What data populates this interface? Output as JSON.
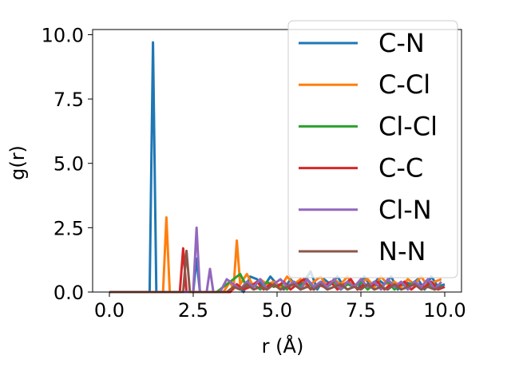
{
  "chart_data": {
    "type": "line",
    "title": "",
    "xlabel": "r (Å)",
    "ylabel": "g(r)",
    "xlim": [
      -0.5,
      10.5
    ],
    "ylim": [
      0,
      10.2
    ],
    "xticks": [
      0.0,
      2.5,
      5.0,
      7.5,
      10.0
    ],
    "xtick_labels": [
      "0.0",
      "2.5",
      "5.0",
      "7.5",
      "10.0"
    ],
    "yticks": [
      0.0,
      2.5,
      5.0,
      7.5,
      10.0
    ],
    "ytick_labels": [
      "0.0",
      "2.5",
      "5.0",
      "7.5",
      "10.0"
    ],
    "grid": false,
    "legend_position": "top-right",
    "series": [
      {
        "name": "C-N",
        "color": "#1f77b4",
        "points": [
          [
            0,
            0
          ],
          [
            1.2,
            0
          ],
          [
            1.3,
            9.7
          ],
          [
            1.4,
            0
          ],
          [
            2.5,
            0
          ],
          [
            2.6,
            1.3
          ],
          [
            2.7,
            0
          ],
          [
            3.6,
            0
          ],
          [
            3.8,
            0.3
          ],
          [
            4.0,
            0
          ],
          [
            4.2,
            0.6
          ],
          [
            4.4,
            0.5
          ],
          [
            4.6,
            0.2
          ],
          [
            4.8,
            0.6
          ],
          [
            5.0,
            0.3
          ],
          [
            5.2,
            0.1
          ],
          [
            5.4,
            0.5
          ],
          [
            5.6,
            0.2
          ],
          [
            5.8,
            0.4
          ],
          [
            6.0,
            0.8
          ],
          [
            6.2,
            0.1
          ],
          [
            6.4,
            0.5
          ],
          [
            6.6,
            0.3
          ],
          [
            6.8,
            0.6
          ],
          [
            7.0,
            0.2
          ],
          [
            7.2,
            0.4
          ],
          [
            7.4,
            0.1
          ],
          [
            7.6,
            0.6
          ],
          [
            7.8,
            0.2
          ],
          [
            8.0,
            0.5
          ],
          [
            8.2,
            0.3
          ],
          [
            8.4,
            0.6
          ],
          [
            8.6,
            0.1
          ],
          [
            8.8,
            0.4
          ],
          [
            9.0,
            0.3
          ],
          [
            9.2,
            0.5
          ],
          [
            9.4,
            0.1
          ],
          [
            9.6,
            0.6
          ],
          [
            9.8,
            0.2
          ],
          [
            10.0,
            0.3
          ]
        ]
      },
      {
        "name": "C-Cl",
        "color": "#ff7f0e",
        "points": [
          [
            0,
            0
          ],
          [
            1.6,
            0
          ],
          [
            1.7,
            2.9
          ],
          [
            1.8,
            0
          ],
          [
            3.4,
            0
          ],
          [
            3.6,
            0.4
          ],
          [
            3.7,
            0.1
          ],
          [
            3.8,
            2.0
          ],
          [
            3.9,
            0.3
          ],
          [
            4.1,
            0.7
          ],
          [
            4.3,
            0.2
          ],
          [
            4.5,
            0.5
          ],
          [
            4.7,
            0.3
          ],
          [
            4.9,
            0.4
          ],
          [
            5.1,
            0.2
          ],
          [
            5.3,
            0.6
          ],
          [
            5.5,
            0.3
          ],
          [
            5.7,
            0.5
          ],
          [
            5.9,
            0.2
          ],
          [
            6.1,
            0.4
          ],
          [
            6.3,
            0.6
          ],
          [
            6.5,
            0.2
          ],
          [
            6.7,
            0.5
          ],
          [
            6.9,
            0.3
          ],
          [
            7.1,
            0.6
          ],
          [
            7.3,
            0.2
          ],
          [
            7.5,
            0.4
          ],
          [
            7.7,
            0.5
          ],
          [
            7.9,
            0.2
          ],
          [
            8.1,
            0.6
          ],
          [
            8.3,
            0.3
          ],
          [
            8.5,
            0.4
          ],
          [
            8.7,
            0.2
          ],
          [
            8.9,
            0.5
          ],
          [
            9.1,
            0.3
          ],
          [
            9.3,
            0.6
          ],
          [
            9.5,
            0.2
          ],
          [
            9.7,
            0.4
          ],
          [
            9.9,
            0.5
          ]
        ]
      },
      {
        "name": "Cl-Cl",
        "color": "#2ca02c",
        "points": [
          [
            0,
            0
          ],
          [
            3.2,
            0
          ],
          [
            3.5,
            0.3
          ],
          [
            3.7,
            0.5
          ],
          [
            3.9,
            0.7
          ],
          [
            4.1,
            0.2
          ],
          [
            4.3,
            0.3
          ],
          [
            4.5,
            0.1
          ],
          [
            4.7,
            0.4
          ],
          [
            4.9,
            0.2
          ],
          [
            5.1,
            0.3
          ],
          [
            5.3,
            0.1
          ],
          [
            5.5,
            0.4
          ],
          [
            5.7,
            0.2
          ],
          [
            5.9,
            0.5
          ],
          [
            6.1,
            0.1
          ],
          [
            6.3,
            0.3
          ],
          [
            6.5,
            0.2
          ],
          [
            6.7,
            0.4
          ],
          [
            6.9,
            0.1
          ],
          [
            7.1,
            0.3
          ],
          [
            7.3,
            0.2
          ],
          [
            7.5,
            0.4
          ],
          [
            7.7,
            0.1
          ],
          [
            7.9,
            0.3
          ],
          [
            8.1,
            0.2
          ],
          [
            8.3,
            0.4
          ],
          [
            8.5,
            0.1
          ],
          [
            8.7,
            0.3
          ],
          [
            8.9,
            0.2
          ],
          [
            9.1,
            0.4
          ],
          [
            9.3,
            0.1
          ],
          [
            9.5,
            0.3
          ],
          [
            9.7,
            0.2
          ],
          [
            9.9,
            0.3
          ]
        ]
      },
      {
        "name": "C-C",
        "color": "#d62728",
        "points": [
          [
            0,
            0
          ],
          [
            2.1,
            0
          ],
          [
            2.2,
            1.7
          ],
          [
            2.3,
            0
          ],
          [
            3.6,
            0
          ],
          [
            3.8,
            0.3
          ],
          [
            4.0,
            0.1
          ],
          [
            4.2,
            0.2
          ],
          [
            4.4,
            0.4
          ],
          [
            4.6,
            0.1
          ],
          [
            4.8,
            0.3
          ],
          [
            5.0,
            0.2
          ],
          [
            5.2,
            0.4
          ],
          [
            5.4,
            0.1
          ],
          [
            5.6,
            0.3
          ],
          [
            5.8,
            0.5
          ],
          [
            6.0,
            0.1
          ],
          [
            6.2,
            0.3
          ],
          [
            6.4,
            0.2
          ],
          [
            6.6,
            0.4
          ],
          [
            6.8,
            0.1
          ],
          [
            7.0,
            0.3
          ],
          [
            7.2,
            0.5
          ],
          [
            7.4,
            0.1
          ],
          [
            7.6,
            0.3
          ],
          [
            7.8,
            0.2
          ],
          [
            8.0,
            0.4
          ],
          [
            8.2,
            0.1
          ],
          [
            8.4,
            0.3
          ],
          [
            8.6,
            0.2
          ],
          [
            8.8,
            0.4
          ],
          [
            9.0,
            0.1
          ],
          [
            9.2,
            0.3
          ],
          [
            9.4,
            0.2
          ],
          [
            9.6,
            0.4
          ],
          [
            9.8,
            0.1
          ],
          [
            10.0,
            0.2
          ]
        ]
      },
      {
        "name": "Cl-N",
        "color": "#9467bd",
        "points": [
          [
            0,
            0
          ],
          [
            2.5,
            0
          ],
          [
            2.6,
            2.5
          ],
          [
            2.7,
            0
          ],
          [
            2.9,
            0
          ],
          [
            3.0,
            0.9
          ],
          [
            3.1,
            0
          ],
          [
            3.3,
            0
          ],
          [
            3.5,
            0.5
          ],
          [
            3.7,
            0.3
          ],
          [
            3.9,
            0.1
          ],
          [
            4.1,
            0.4
          ],
          [
            4.3,
            0.2
          ],
          [
            4.5,
            0.5
          ],
          [
            4.7,
            0.1
          ],
          [
            4.9,
            0.3
          ],
          [
            5.1,
            0.5
          ],
          [
            5.3,
            0.2
          ],
          [
            5.5,
            0.4
          ],
          [
            5.7,
            0.1
          ],
          [
            5.9,
            0.5
          ],
          [
            6.1,
            0.2
          ],
          [
            6.3,
            0.4
          ],
          [
            6.5,
            0.2
          ],
          [
            6.7,
            0.5
          ],
          [
            6.9,
            0.1
          ],
          [
            7.1,
            0.4
          ],
          [
            7.3,
            0.2
          ],
          [
            7.5,
            0.5
          ],
          [
            7.7,
            0.2
          ],
          [
            7.9,
            0.4
          ],
          [
            8.1,
            0.1
          ],
          [
            8.3,
            0.5
          ],
          [
            8.5,
            0.2
          ],
          [
            8.7,
            0.4
          ],
          [
            8.9,
            0.1
          ],
          [
            9.1,
            0.4
          ],
          [
            9.3,
            0.2
          ],
          [
            9.5,
            0.5
          ],
          [
            9.7,
            0.1
          ],
          [
            9.9,
            0.4
          ]
        ]
      },
      {
        "name": "N-N",
        "color": "#8c564b",
        "points": [
          [
            0,
            0
          ],
          [
            2.2,
            0
          ],
          [
            2.3,
            1.6
          ],
          [
            2.4,
            0
          ],
          [
            3.5,
            0
          ],
          [
            3.7,
            0.2
          ],
          [
            3.9,
            0.1
          ],
          [
            4.1,
            0.3
          ],
          [
            4.3,
            0.1
          ],
          [
            4.5,
            0.2
          ],
          [
            4.7,
            0.1
          ],
          [
            4.9,
            0.3
          ],
          [
            5.1,
            0.1
          ],
          [
            5.3,
            0.2
          ],
          [
            5.5,
            0.3
          ],
          [
            5.7,
            0.1
          ],
          [
            5.9,
            0.2
          ],
          [
            6.1,
            0.1
          ],
          [
            6.3,
            0.3
          ],
          [
            6.5,
            0.1
          ],
          [
            6.7,
            0.2
          ],
          [
            6.9,
            0.3
          ],
          [
            7.1,
            0.1
          ],
          [
            7.3,
            0.2
          ],
          [
            7.5,
            0.1
          ],
          [
            7.7,
            0.3
          ],
          [
            7.9,
            0.1
          ],
          [
            8.1,
            0.2
          ],
          [
            8.3,
            0.1
          ],
          [
            8.5,
            0.3
          ],
          [
            8.7,
            0.1
          ],
          [
            8.9,
            0.2
          ],
          [
            9.1,
            0.3
          ],
          [
            9.3,
            0.1
          ],
          [
            9.5,
            0.2
          ],
          [
            9.7,
            0.1
          ],
          [
            9.9,
            0.2
          ]
        ]
      }
    ]
  }
}
